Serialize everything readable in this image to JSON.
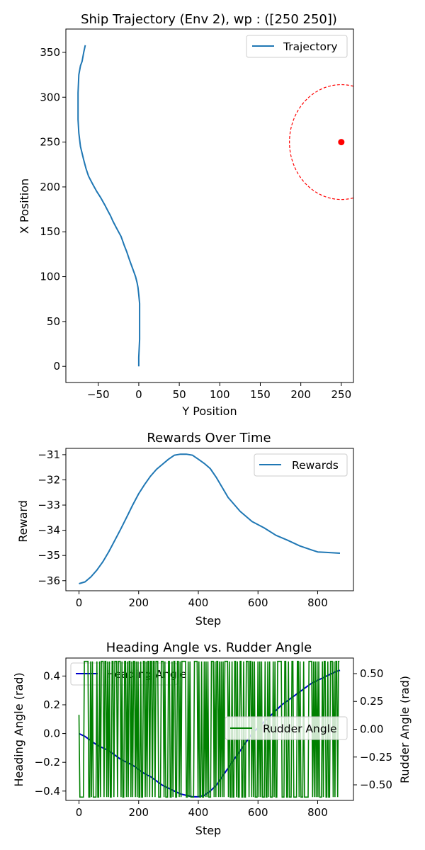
{
  "colors": {
    "trajectory": "#1f77b4",
    "rewards": "#1f77b4",
    "heading": "#0000cc",
    "rudder": "#008000",
    "waypoint": "#ff0000"
  },
  "chart_data": [
    {
      "type": "line",
      "title": "Ship Trajectory (Env 2), wp : ([250 250])",
      "xlabel": "Y Position",
      "ylabel": "X Position",
      "xlim": [
        -90,
        265
      ],
      "ylim": [
        -18,
        376
      ],
      "xticks": [
        -50,
        0,
        50,
        100,
        150,
        200,
        250
      ],
      "xtick_labels": [
        "−50",
        "0",
        "50",
        "100",
        "150",
        "200",
        "250"
      ],
      "yticks": [
        0,
        50,
        100,
        150,
        200,
        250,
        300,
        350
      ],
      "ytick_labels": [
        "0",
        "50",
        "100",
        "150",
        "200",
        "250",
        "300",
        "350"
      ],
      "legend": "upper right",
      "grid": false,
      "series": [
        {
          "name": "Trajectory",
          "x": [
            0,
            0,
            1,
            1,
            1,
            1,
            0,
            -1,
            -2,
            -4,
            -6,
            -8,
            -10,
            -12,
            -15,
            -18,
            -20,
            -22,
            -25,
            -28,
            -32,
            -35,
            -38,
            -42,
            -47,
            -52,
            -55,
            -58,
            -62,
            -65,
            -68,
            -72,
            -74,
            -75,
            -75,
            -75,
            -74,
            -72,
            -70,
            -68,
            -66
          ],
          "y": [
            0,
            10,
            30,
            50,
            60,
            70,
            80,
            88,
            93,
            100,
            105,
            110,
            115,
            120,
            128,
            135,
            140,
            145,
            150,
            155,
            162,
            168,
            173,
            180,
            188,
            195,
            200,
            205,
            212,
            220,
            230,
            245,
            260,
            275,
            290,
            305,
            325,
            335,
            340,
            350,
            358
          ]
        }
      ],
      "waypoint": {
        "x": 250,
        "y": 250,
        "radius": 64
      }
    },
    {
      "type": "line",
      "title": "Rewards Over Time",
      "xlabel": "Step",
      "ylabel": "Reward",
      "xlim": [
        -44,
        920
      ],
      "ylim": [
        -36.4,
        -30.75
      ],
      "xticks": [
        0,
        200,
        400,
        600,
        800
      ],
      "xtick_labels": [
        "0",
        "200",
        "400",
        "600",
        "800"
      ],
      "yticks": [
        -36,
        -35,
        -34,
        -33,
        -32,
        -31
      ],
      "ytick_labels": [
        "−36",
        "−35",
        "−34",
        "−33",
        "−32",
        "−31"
      ],
      "legend": "upper right",
      "grid": false,
      "series": [
        {
          "name": "Rewards",
          "x": [
            0,
            20,
            40,
            60,
            80,
            100,
            120,
            140,
            160,
            180,
            200,
            220,
            240,
            260,
            280,
            300,
            320,
            340,
            360,
            380,
            400,
            420,
            440,
            460,
            480,
            500,
            540,
            580,
            620,
            660,
            700,
            740,
            780,
            800,
            830,
            875
          ],
          "y": [
            -36.12,
            -36.05,
            -35.85,
            -35.58,
            -35.25,
            -34.85,
            -34.4,
            -33.95,
            -33.48,
            -33.0,
            -32.55,
            -32.18,
            -31.85,
            -31.58,
            -31.38,
            -31.18,
            -31.02,
            -30.98,
            -30.98,
            -31.02,
            -31.18,
            -31.35,
            -31.55,
            -31.9,
            -32.3,
            -32.7,
            -33.25,
            -33.65,
            -33.9,
            -34.2,
            -34.4,
            -34.62,
            -34.78,
            -34.86,
            -34.88,
            -34.91
          ]
        }
      ]
    },
    {
      "type": "line",
      "title": "Heading Angle vs. Rudder Angle",
      "xlabel": "Step",
      "ylabel": "Heading Angle (rad)",
      "y2label": "Rudder Angle (rad)",
      "xlim": [
        -44,
        920
      ],
      "ylim": [
        -0.465,
        0.525
      ],
      "y2lim": [
        -0.64,
        0.64
      ],
      "xticks": [
        0,
        200,
        400,
        600,
        800
      ],
      "xtick_labels": [
        "0",
        "200",
        "400",
        "600",
        "800"
      ],
      "yticks": [
        -0.4,
        -0.2,
        0.0,
        0.2,
        0.4
      ],
      "ytick_labels": [
        "−0.4",
        "−0.2",
        "0.0",
        "0.2",
        "0.4"
      ],
      "y2ticks": [
        -0.5,
        -0.25,
        0.0,
        0.25,
        0.5
      ],
      "y2tick_labels": [
        "−0.50",
        "−0.25",
        "0.00",
        "0.25",
        "0.50"
      ],
      "grid": false,
      "series": [
        {
          "name": "Heading Angle",
          "axis": "left",
          "x": [
            0,
            20,
            40,
            60,
            80,
            100,
            120,
            140,
            160,
            180,
            200,
            220,
            240,
            260,
            280,
            300,
            320,
            340,
            360,
            380,
            400,
            420,
            440,
            460,
            480,
            500,
            520,
            540,
            560,
            580,
            600,
            620,
            640,
            660,
            680,
            700,
            720,
            740,
            760,
            780,
            800,
            820,
            840,
            860,
            875
          ],
          "y": [
            0.0,
            -0.02,
            -0.05,
            -0.08,
            -0.1,
            -0.12,
            -0.15,
            -0.18,
            -0.2,
            -0.22,
            -0.25,
            -0.28,
            -0.3,
            -0.33,
            -0.36,
            -0.38,
            -0.4,
            -0.42,
            -0.43,
            -0.44,
            -0.44,
            -0.43,
            -0.4,
            -0.36,
            -0.3,
            -0.24,
            -0.18,
            -0.12,
            -0.06,
            0.0,
            0.04,
            0.08,
            0.12,
            0.16,
            0.2,
            0.23,
            0.26,
            0.29,
            0.32,
            0.35,
            0.37,
            0.39,
            0.41,
            0.43,
            0.44
          ]
        },
        {
          "name": "Rudder Angle",
          "axis": "right",
          "step": 3,
          "x_end": 875,
          "amplitude": 0.61
        }
      ]
    }
  ]
}
